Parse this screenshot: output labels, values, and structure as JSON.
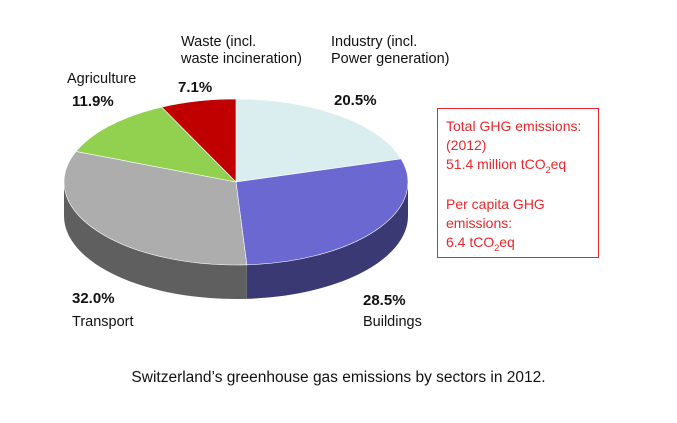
{
  "chart_data": {
    "type": "pie",
    "title": "",
    "slices": [
      {
        "label": "Industry (incl. Power generation)",
        "label_line1": "Industry (incl.",
        "label_line2": "Power generation)",
        "value": 20.5,
        "value_label": "20.5%",
        "color": "#daeef0"
      },
      {
        "label": "Buildings",
        "value": 28.5,
        "value_label": "28.5%",
        "color": "#6b68d2"
      },
      {
        "label": "Transport",
        "value": 32.0,
        "value_label": "32.0%",
        "color": "#adadad"
      },
      {
        "label": "Agriculture",
        "value": 11.9,
        "value_label": "11.9%",
        "color": "#92d050"
      },
      {
        "label": "Waste (incl. waste incineration)",
        "label_line1": "Waste (incl.",
        "label_line2": "waste incineration)",
        "value": 7.1,
        "value_label": "7.1%",
        "color": "#c00000"
      }
    ]
  },
  "info_box": {
    "total_label_1": "Total GHG emissions:",
    "total_label_2": "(2012)",
    "total_value_prefix": "51.4 million tCO",
    "total_value_sub": "2",
    "total_value_suffix": "eq",
    "per_capita_label_1": "Per capita GHG",
    "per_capita_label_2": "emissions:",
    "per_capita_value_prefix": "6.4 tCO",
    "per_capita_value_sub": "2",
    "per_capita_value_suffix": "eq",
    "border_color": "#e8282b"
  },
  "caption": "Switzerland’s greenhouse gas emissions by sectors in 2012."
}
